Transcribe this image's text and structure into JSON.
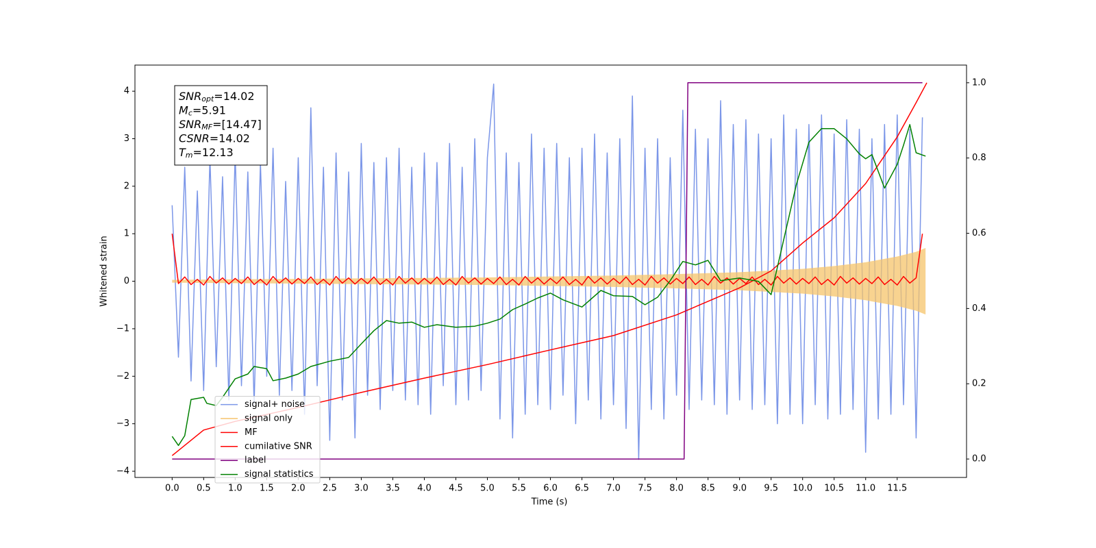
{
  "chart_data": {
    "type": "line",
    "xlabel": "Time (s)",
    "ylabel": "Whitened strain",
    "xlim": [
      -0.59,
      12.6
    ],
    "ylim": [
      -4.13,
      4.55
    ],
    "y2lim": [
      -0.049,
      1.047
    ],
    "xticks": [
      {
        "value": 0,
        "label": "0.0"
      },
      0.5,
      {
        "value": 1,
        "label": "1.0"
      },
      1.5,
      {
        "value": 2,
        "label": "2.0"
      },
      2.5,
      {
        "value": 3,
        "label": "3.0"
      },
      3.5,
      {
        "value": 4,
        "label": "4.0"
      },
      4.5,
      {
        "value": 5,
        "label": "5.0"
      },
      5.5,
      {
        "value": 6,
        "label": "6.0"
      },
      6.5,
      {
        "value": 7,
        "label": "7.0"
      },
      7.5,
      {
        "value": 8,
        "label": "8.0"
      },
      8.5,
      {
        "value": 9,
        "label": "9.0"
      },
      9.5,
      {
        "value": 10,
        "label": "10.0"
      },
      10.5,
      {
        "value": 11,
        "label": "11.0"
      },
      11.5
    ],
    "yticks": [
      {
        "value": -4,
        "label": "−4"
      },
      {
        "value": -3,
        "label": "−3"
      },
      {
        "value": -2,
        "label": "−2"
      },
      {
        "value": -1,
        "label": "−1"
      },
      0,
      1,
      2,
      3,
      4
    ],
    "y2ticks": [
      {
        "value": 0,
        "label": "0.0"
      },
      0.2,
      0.4,
      0.6,
      0.8,
      {
        "value": 1,
        "label": "1.0"
      }
    ],
    "legend": "lower left",
    "annotations": [
      {
        "main": "SNR",
        "sub": "opt",
        "text": "=14.02"
      },
      {
        "main": "M",
        "sub": "c",
        "text": "=5.91"
      },
      {
        "main": "SNR",
        "sub": "MF",
        "text": "=[14.47]"
      },
      {
        "main": "CSNR",
        "text": "=14.02"
      },
      {
        "main": "T",
        "sub": "m",
        "text": "=12.13"
      }
    ],
    "x": [
      0,
      0.1,
      0.2,
      0.3,
      0.4,
      0.5,
      0.6,
      0.7,
      0.8,
      0.9,
      1,
      1.1,
      1.2,
      1.3,
      1.4,
      1.5,
      1.6,
      1.7,
      1.8,
      1.9,
      2,
      2.1,
      2.2,
      2.3,
      2.4,
      2.5,
      2.6,
      2.7,
      2.8,
      2.9,
      3,
      3.1,
      3.2,
      3.3,
      3.4,
      3.5,
      3.6,
      3.7,
      3.8,
      3.9,
      4,
      4.1,
      4.2,
      4.3,
      4.4,
      4.5,
      4.6,
      4.7,
      4.8,
      4.9,
      5,
      5.1,
      5.2,
      5.3,
      5.4,
      5.5,
      5.6,
      5.7,
      5.8,
      5.9,
      6,
      6.1,
      6.2,
      6.3,
      6.4,
      6.5,
      6.6,
      6.7,
      6.8,
      6.9,
      7,
      7.1,
      7.2,
      7.3,
      7.4,
      7.5,
      7.6,
      7.7,
      7.8,
      7.9,
      8,
      8.1,
      8.2,
      8.3,
      8.4,
      8.5,
      8.6,
      8.7,
      8.8,
      8.9,
      9,
      9.1,
      9.2,
      9.3,
      9.4,
      9.5,
      9.6,
      9.7,
      9.8,
      9.9,
      10,
      10.1,
      10.2,
      10.3,
      10.4,
      10.5,
      10.6,
      10.7,
      10.8,
      10.9,
      11,
      11.1,
      11.2,
      11.3,
      11.4,
      11.5,
      11.6,
      11.7,
      11.8,
      11.9
    ],
    "series": [
      {
        "name": "signal+ noise",
        "color": "#7b96e8",
        "values": [
          1.6,
          -1.6,
          2.4,
          -2.1,
          1.9,
          -2.3,
          2.6,
          -1.8,
          2.2,
          -2.5,
          2.7,
          -2.2,
          2.3,
          -2.6,
          2.5,
          -2.0,
          2.8,
          -2.4,
          2.1,
          -2.3,
          2.6,
          -2.8,
          3.65,
          -2.2,
          2.4,
          -3.35,
          2.7,
          -2.5,
          2.3,
          -3.3,
          2.9,
          -2.4,
          2.5,
          -2.7,
          2.6,
          -2.3,
          2.8,
          -2.5,
          2.4,
          -2.6,
          2.7,
          -2.8,
          2.5,
          -2.2,
          2.9,
          -2.6,
          2.4,
          -2.5,
          3.0,
          -2.3,
          2.6,
          4.15,
          -2.9,
          2.7,
          -3.3,
          2.5,
          -2.8,
          3.1,
          -2.6,
          2.8,
          -2.7,
          2.9,
          -2.4,
          2.6,
          -3.0,
          2.8,
          -2.5,
          3.1,
          -2.9,
          2.7,
          -2.6,
          3.0,
          -3.1,
          3.9,
          -3.75,
          2.8,
          -2.7,
          3.0,
          -2.9,
          2.6,
          -2.4,
          3.6,
          -2.7,
          3.2,
          -2.5,
          3.0,
          -2.6,
          3.8,
          -2.8,
          3.3,
          -2.5,
          3.4,
          -2.7,
          3.1,
          -2.6,
          3.0,
          -3.0,
          3.5,
          -2.8,
          3.2,
          -3.0,
          3.3,
          -2.6,
          3.5,
          -2.9,
          3.1,
          -2.8,
          3.4,
          -2.7,
          3.2,
          -3.6,
          3.0,
          -2.9,
          3.3,
          -2.8,
          3.5,
          -2.6,
          3.2,
          -3.3,
          3.45
        ]
      },
      {
        "name": "signal only",
        "color": "#f5c46b",
        "fill": true,
        "x": [
          0,
          1,
          2,
          3,
          4,
          5,
          6,
          7,
          8,
          9,
          10,
          10.5,
          11,
          11.5,
          11.8,
          11.95
        ],
        "values": [
          0.03,
          0.04,
          0.05,
          0.06,
          0.07,
          0.08,
          0.1,
          0.12,
          0.15,
          0.19,
          0.26,
          0.32,
          0.4,
          0.52,
          0.62,
          0.7
        ]
      },
      {
        "name": "MF",
        "color": "red",
        "values": [
          1.0,
          -0.05,
          0.09,
          -0.07,
          0.04,
          -0.08,
          0.1,
          -0.04,
          0.07,
          -0.06,
          0.06,
          -0.05,
          0.09,
          -0.07,
          0.04,
          -0.08,
          0.1,
          -0.04,
          0.07,
          -0.06,
          0.06,
          -0.05,
          0.09,
          -0.07,
          0.04,
          -0.08,
          0.1,
          -0.04,
          0.07,
          -0.06,
          0.06,
          -0.05,
          0.09,
          -0.07,
          0.04,
          -0.08,
          0.1,
          -0.04,
          0.07,
          -0.06,
          0.06,
          -0.05,
          0.09,
          -0.07,
          0.04,
          -0.08,
          0.1,
          -0.04,
          0.07,
          -0.06,
          0.06,
          -0.05,
          0.09,
          -0.07,
          0.04,
          -0.08,
          0.1,
          -0.04,
          0.07,
          -0.06,
          0.06,
          -0.05,
          0.09,
          -0.07,
          0.04,
          -0.08,
          0.1,
          -0.04,
          0.07,
          -0.06,
          0.06,
          -0.05,
          0.09,
          -0.07,
          0.04,
          -0.08,
          0.1,
          -0.04,
          0.07,
          -0.06,
          0.06,
          -0.05,
          0.09,
          -0.07,
          0.04,
          -0.08,
          0.1,
          -0.04,
          0.07,
          -0.06,
          0.06,
          -0.05,
          0.09,
          -0.07,
          0.04,
          -0.08,
          0.1,
          -0.04,
          0.07,
          -0.06,
          0.06,
          -0.05,
          0.09,
          -0.07,
          0.04,
          -0.08,
          0.1,
          -0.04,
          0.07,
          -0.06,
          0.06,
          -0.05,
          0.09,
          -0.07,
          0.04,
          -0.08,
          0.1,
          -0.04,
          0.07,
          1.0
        ]
      },
      {
        "name": "cumilative SNR",
        "color": "red",
        "axis": "y2",
        "x": [
          0,
          0.5,
          1,
          2,
          3,
          4,
          5,
          6,
          7,
          8,
          8.5,
          9,
          9.5,
          10,
          10.5,
          11,
          11.5,
          11.8,
          11.97
        ],
        "values": [
          0.009,
          0.077,
          0.1,
          0.137,
          0.177,
          0.215,
          0.251,
          0.29,
          0.328,
          0.383,
          0.419,
          0.455,
          0.5,
          0.574,
          0.641,
          0.732,
          0.856,
          0.947,
          1.0
        ]
      },
      {
        "name": "label",
        "color": "purple",
        "axis": "y2",
        "x": [
          0,
          8.12,
          8.18,
          11.9
        ],
        "values": [
          0,
          0,
          1,
          1
        ]
      },
      {
        "name": "signal statistics",
        "color": "green",
        "axis": "y2",
        "x": [
          0,
          0.1,
          0.2,
          0.3,
          0.5,
          0.55,
          0.7,
          0.8,
          1.0,
          1.2,
          1.3,
          1.5,
          1.6,
          1.8,
          2.0,
          2.2,
          2.5,
          2.8,
          3.0,
          3.2,
          3.4,
          3.6,
          3.8,
          4.0,
          4.2,
          4.5,
          4.8,
          5.0,
          5.2,
          5.4,
          5.6,
          5.8,
          6.0,
          6.2,
          6.5,
          6.8,
          7.0,
          7.3,
          7.5,
          7.7,
          7.9,
          8.1,
          8.3,
          8.5,
          8.7,
          9.0,
          9.3,
          9.5,
          9.7,
          9.9,
          10.1,
          10.3,
          10.5,
          10.7,
          10.9,
          11.0,
          11.1,
          11.3,
          11.5,
          11.6,
          11.7,
          11.8,
          11.95
        ],
        "values": [
          0.06,
          0.036,
          0.062,
          0.158,
          0.164,
          0.148,
          0.142,
          0.164,
          0.213,
          0.226,
          0.246,
          0.24,
          0.208,
          0.215,
          0.226,
          0.246,
          0.26,
          0.27,
          0.306,
          0.341,
          0.368,
          0.361,
          0.364,
          0.35,
          0.357,
          0.35,
          0.353,
          0.361,
          0.372,
          0.397,
          0.412,
          0.428,
          0.441,
          0.423,
          0.404,
          0.448,
          0.434,
          0.432,
          0.41,
          0.43,
          0.474,
          0.525,
          0.516,
          0.528,
          0.474,
          0.481,
          0.472,
          0.437,
          0.583,
          0.729,
          0.842,
          0.878,
          0.878,
          0.851,
          0.811,
          0.798,
          0.809,
          0.72,
          0.783,
          0.834,
          0.889,
          0.814,
          0.805
        ]
      }
    ]
  }
}
